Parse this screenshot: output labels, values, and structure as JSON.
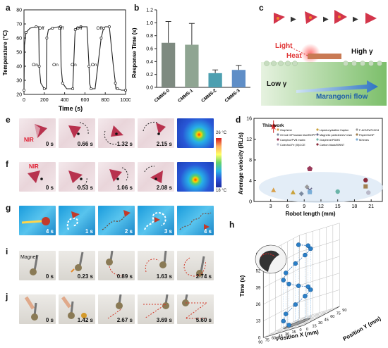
{
  "panels": {
    "a": "a",
    "b": "b",
    "c": "c",
    "d": "d",
    "e": "e",
    "f": "f",
    "g": "g",
    "h": "h",
    "i": "i",
    "j": "j"
  },
  "chart_data": [
    {
      "id": "a",
      "type": "line",
      "xlabel": "Time (s)",
      "ylabel": "Temperature (°C)",
      "xlim": [
        0,
        1000
      ],
      "ylim": [
        20,
        80
      ],
      "xticks": [
        "0",
        "200",
        "400",
        "600",
        "800",
        "1000"
      ],
      "yticks": [
        "20",
        "30",
        "40",
        "50",
        "60",
        "70",
        "80"
      ],
      "annotations": [
        "On",
        "Off",
        "On",
        "Off",
        "On",
        "Off",
        "On",
        "Off"
      ],
      "series": [
        {
          "x": [
            0,
            5,
            20,
            60,
            120,
            145,
            150,
            165,
            200,
            220,
            225,
            240,
            280,
            340,
            360,
            365,
            380,
            420,
            480,
            500,
            505,
            520,
            560,
            620,
            640,
            645,
            660,
            700,
            760,
            780,
            785,
            800,
            840,
            880,
            900,
            905,
            920,
            960,
            1000
          ],
          "y": [
            23,
            55,
            64,
            67,
            68,
            68,
            40,
            28,
            24,
            24,
            60,
            66,
            67,
            68,
            68,
            40,
            28,
            24,
            24,
            60,
            66,
            67,
            68,
            68,
            40,
            28,
            24,
            24,
            60,
            66,
            67,
            68,
            68,
            40,
            28,
            24,
            24,
            23,
            23
          ]
        }
      ]
    },
    {
      "id": "b",
      "type": "bar",
      "ylabel": "Response Time (s)",
      "ylim": [
        0,
        1.2
      ],
      "yticks": [
        "0.0",
        "0.2",
        "0.4",
        "0.6",
        "0.8",
        "1.0",
        "1.2"
      ],
      "categories": [
        "CMMS-0",
        "CMMS-1",
        "CMMS-2",
        "CMMS-3"
      ],
      "values": [
        0.69,
        0.66,
        0.22,
        0.27
      ],
      "errors": [
        0.33,
        0.33,
        0.05,
        0.07
      ],
      "colors": [
        "#7e8a80",
        "#8fa592",
        "#4d9fb0",
        "#5f8ec7"
      ]
    },
    {
      "id": "d",
      "type": "scatter",
      "xlabel": "Robot length (mm)",
      "ylabel": "Average velocity (RL/s)",
      "xlim": [
        0,
        23
      ],
      "ylim": [
        0,
        16
      ],
      "xticks": [
        "3",
        "6",
        "9",
        "12",
        "15",
        "18",
        "21"
      ],
      "yticks": [
        "0",
        "4",
        "8",
        "12",
        "16"
      ],
      "annotation": "This work",
      "series": [
        {
          "name": "Graphene",
          "x": [
            3.5
          ],
          "y": [
            2.2
          ]
        },
        {
          "name": "Liquid-crystalline Kapton",
          "x": [
            7
          ],
          "y": [
            1.8
          ]
        },
        {
          "name": "F-ACNTs/Fe3O4",
          "x": [
            9.5
          ],
          "y": [
            2.8
          ]
        },
        {
          "name": "Oil rod O/Prussian blue/BOPP",
          "x": [
            8.5
          ],
          "y": [
            1.5
          ]
        },
        {
          "name": "Magnetic particles/UV resin",
          "x": [
            10
          ],
          "y": [
            2.2
          ]
        },
        {
          "name": "Paper/GuNP",
          "x": [
            20
          ],
          "y": [
            2.9
          ]
        },
        {
          "name": "Camphor/PVB matrix",
          "x": [
            10
          ],
          "y": [
            6.3
          ]
        },
        {
          "name": "Graphene/PDMS",
          "x": [
            15
          ],
          "y": [
            1.9
          ]
        },
        {
          "name": "MXenes",
          "x": [
            10
          ],
          "y": [
            1.8
          ]
        },
        {
          "name": "Colechol-Fe (III)/LCE",
          "x": [
            20.5
          ],
          "y": [
            1.7
          ]
        },
        {
          "name": "Carbon black/MWNT",
          "x": [
            20
          ],
          "y": [
            4.1
          ]
        },
        {
          "name": "This work",
          "x": [
            3.5
          ],
          "y": [
            14.5
          ]
        }
      ]
    },
    {
      "id": "h",
      "type": "scatter",
      "xlabel": "Position X (mm)",
      "ylabel": "Position Y (mm)",
      "zlabel": "Time (s)",
      "xticks": [
        "0",
        "15",
        "30",
        "45",
        "60",
        "75",
        "90"
      ],
      "yticks": [
        "0",
        "15",
        "30",
        "45",
        "60",
        "75",
        "90"
      ],
      "zticks": [
        "0",
        "13",
        "26",
        "39",
        "52",
        "65"
      ]
    }
  ],
  "chart_a_labels": {
    "xlabel": "Time (s)",
    "ylabel": "Temperature (°C)"
  },
  "chart_b_labels": {
    "ylabel": "Response Time (s)"
  },
  "chart_d_labels": {
    "xlabel": "Robot length (mm)",
    "ylabel": "Average velocity (RL/s)",
    "this_work": "This work"
  },
  "chart_h_labels": {
    "xlabel": "Position X (mm)",
    "ylabel": "Position Y (mm)",
    "zlabel": "Time (s)"
  },
  "schematic_c": {
    "light": "Light",
    "heat": "Heat",
    "high_gamma": "High γ",
    "low_gamma": "Low γ",
    "flow": "Marangoni flow"
  },
  "row_e": {
    "nir": "NIR",
    "times": [
      "0 s",
      "0.66 s",
      "1.32 s",
      "2.15 s"
    ]
  },
  "row_f": {
    "nir": "NIR",
    "times": [
      "0 s",
      "0.53 s",
      "1.06 s",
      "2.08 s"
    ]
  },
  "row_g": {
    "times": [
      "4 s",
      "1 s",
      "2 s",
      "3 s",
      "4 s"
    ]
  },
  "row_i": {
    "magnet": "Magnet",
    "times": [
      "0 s",
      "0.23 s",
      "0.89 s",
      "1.63 s",
      "2.74 s"
    ]
  },
  "row_j": {
    "times": [
      "0 s",
      "1.42 s",
      "2.67 s",
      "3.69 s",
      "5.60 s"
    ]
  },
  "colorbar": {
    "max": "26 °C",
    "min": "18 °C"
  }
}
